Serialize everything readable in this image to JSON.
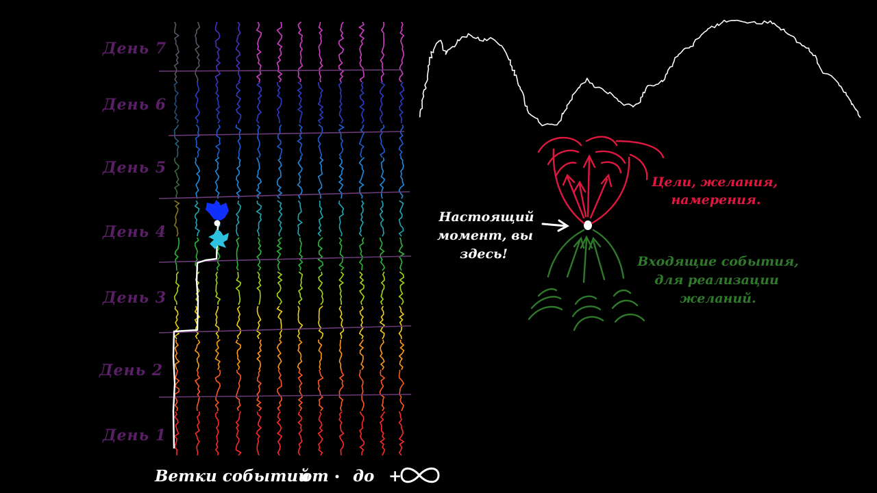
{
  "day_labels": [
    "День 7",
    "День 6",
    "День 5",
    "День 4",
    "День 3",
    "День 2",
    "День 1"
  ],
  "bottom_label": {
    "text": "Ветки событий",
    "range_from": "от",
    "range_to": "до"
  },
  "present_note": [
    "Настоящий",
    "момент, вы",
    "здесь!"
  ],
  "goals_note": [
    "Цели, желания,",
    "намерения."
  ],
  "events_note": [
    "Входящие события,",
    "для реализации",
    "желаний."
  ],
  "colors": {
    "day_text": "#5a1f66",
    "divider": "#6b3a78",
    "path": "#ffffff",
    "goals": "#e0173f",
    "events": "#2f7a2a",
    "current_blob": "#1030ff",
    "current_splash": "#2fc2e0"
  }
}
